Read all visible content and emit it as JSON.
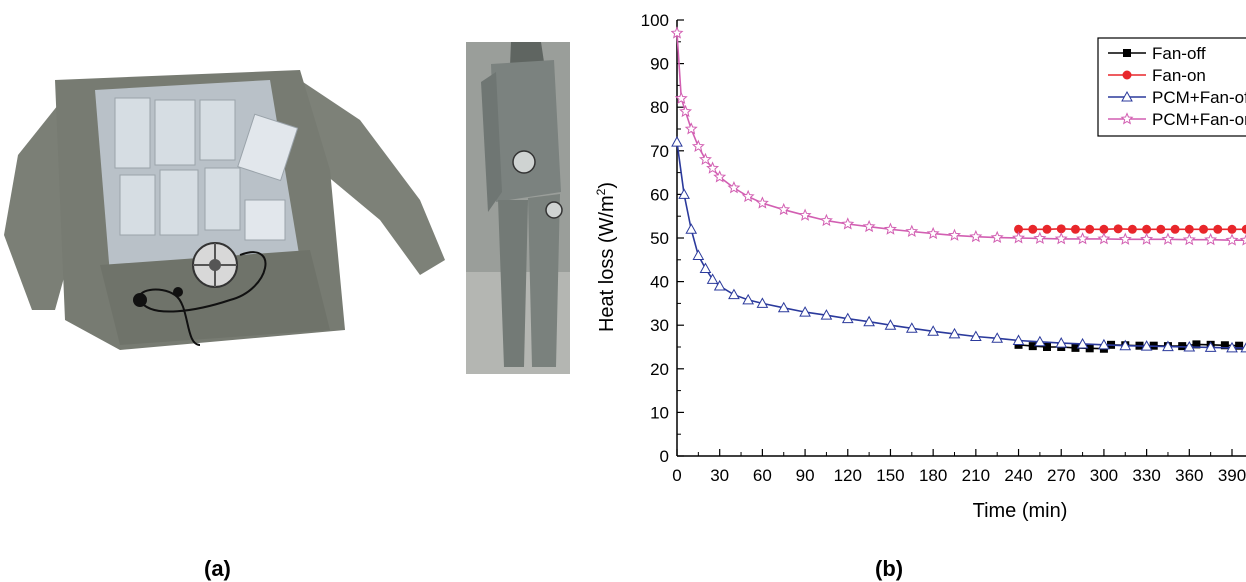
{
  "panels": {
    "a_label": "(a)",
    "b_label": "(b)"
  },
  "chart_data": {
    "type": "line",
    "xlabel": "Time (min)",
    "ylabel": "Heat loss (W/m²)",
    "ylabel_base": "Heat loss (W/m",
    "ylabel_sup": "2",
    "ylabel_tail": ")",
    "xlim": [
      0,
      400
    ],
    "ylim": [
      0,
      100
    ],
    "xticks": [
      0,
      30,
      60,
      90,
      120,
      150,
      180,
      210,
      240,
      270,
      300,
      330,
      360,
      390
    ],
    "yticks": [
      0,
      10,
      20,
      30,
      40,
      50,
      60,
      70,
      80,
      90,
      100
    ],
    "legend_position": "top-right",
    "series": [
      {
        "name": "Fan-off",
        "color": "#000000",
        "marker": "square",
        "x": [
          240,
          250,
          260,
          270,
          280,
          290,
          300,
          305,
          315,
          325,
          335,
          345,
          355,
          365,
          375,
          385,
          395
        ],
        "y": [
          25.5,
          25.2,
          25.0,
          25.0,
          24.8,
          24.7,
          24.6,
          25.5,
          25.4,
          25.3,
          25.3,
          25.2,
          25.2,
          25.6,
          25.5,
          25.4,
          25.3
        ]
      },
      {
        "name": "Fan-on",
        "color": "#e8262b",
        "marker": "circle",
        "x": [
          240,
          250,
          260,
          270,
          280,
          290,
          300,
          310,
          320,
          330,
          340,
          350,
          360,
          370,
          380,
          390,
          400
        ],
        "y": [
          52,
          52,
          52,
          52.1,
          52,
          52,
          52,
          52.1,
          52,
          52,
          52,
          52,
          52,
          52,
          52,
          52,
          52
        ]
      },
      {
        "name": "PCM+Fan-off",
        "color": "#2b3a9c",
        "marker": "triangle",
        "x": [
          0,
          5,
          10,
          15,
          20,
          25,
          30,
          40,
          50,
          60,
          75,
          90,
          105,
          120,
          135,
          150,
          165,
          180,
          195,
          210,
          225,
          240,
          255,
          270,
          285,
          300,
          315,
          330,
          345,
          360,
          375,
          390,
          400
        ],
        "y": [
          72,
          60,
          52,
          46,
          43,
          40.5,
          39,
          37,
          35.8,
          35,
          34,
          33,
          32.3,
          31.5,
          30.8,
          30,
          29.3,
          28.6,
          28,
          27.4,
          27,
          26.5,
          26.2,
          25.9,
          25.7,
          25.5,
          25.3,
          25.2,
          25.1,
          25,
          24.9,
          24.8,
          24.8
        ]
      },
      {
        "name": "PCM+Fan-on",
        "color": "#d25fb2",
        "marker": "star",
        "x": [
          0,
          3,
          6,
          10,
          15,
          20,
          25,
          30,
          40,
          50,
          60,
          75,
          90,
          105,
          120,
          135,
          150,
          165,
          180,
          195,
          210,
          225,
          240,
          255,
          270,
          285,
          300,
          315,
          330,
          345,
          360,
          375,
          390,
          400
        ],
        "y": [
          97,
          82,
          79,
          75,
          71,
          68,
          66,
          64,
          61.5,
          59.5,
          58,
          56.5,
          55.2,
          54,
          53.2,
          52.6,
          52,
          51.5,
          51,
          50.6,
          50.3,
          50.1,
          50,
          49.9,
          49.8,
          49.8,
          49.8,
          49.7,
          49.7,
          49.7,
          49.6,
          49.6,
          49.5,
          49.5
        ]
      }
    ]
  }
}
